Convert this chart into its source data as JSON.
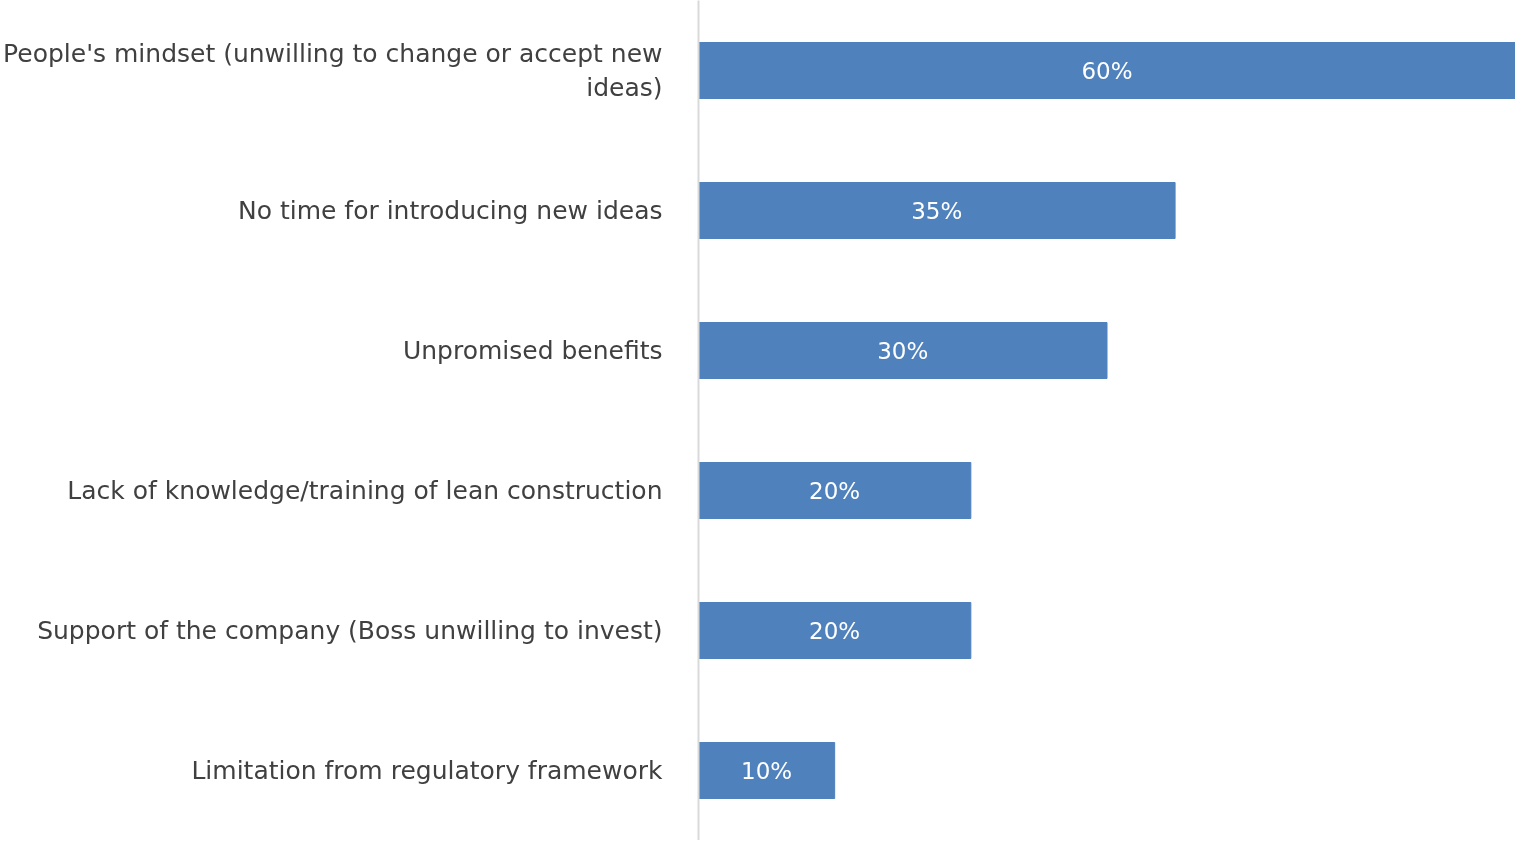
{
  "chart_data": {
    "type": "bar",
    "orientation": "horizontal",
    "categories": [
      "People's mindset (unwilling to change or accept new ideas)",
      "No time for introducing new ideas",
      "Unpromised benefits",
      "Lack of knowledge/training of lean construction",
      "Support of the company (Boss unwilling to invest)",
      "Limitation from regulatory framework"
    ],
    "values": [
      60,
      35,
      30,
      20,
      20,
      10
    ],
    "value_labels": [
      "60%",
      "35%",
      "30%",
      "20%",
      "20%",
      "10%"
    ],
    "color": "#4f81bd",
    "grid": false,
    "tick_labels": "y"
  }
}
